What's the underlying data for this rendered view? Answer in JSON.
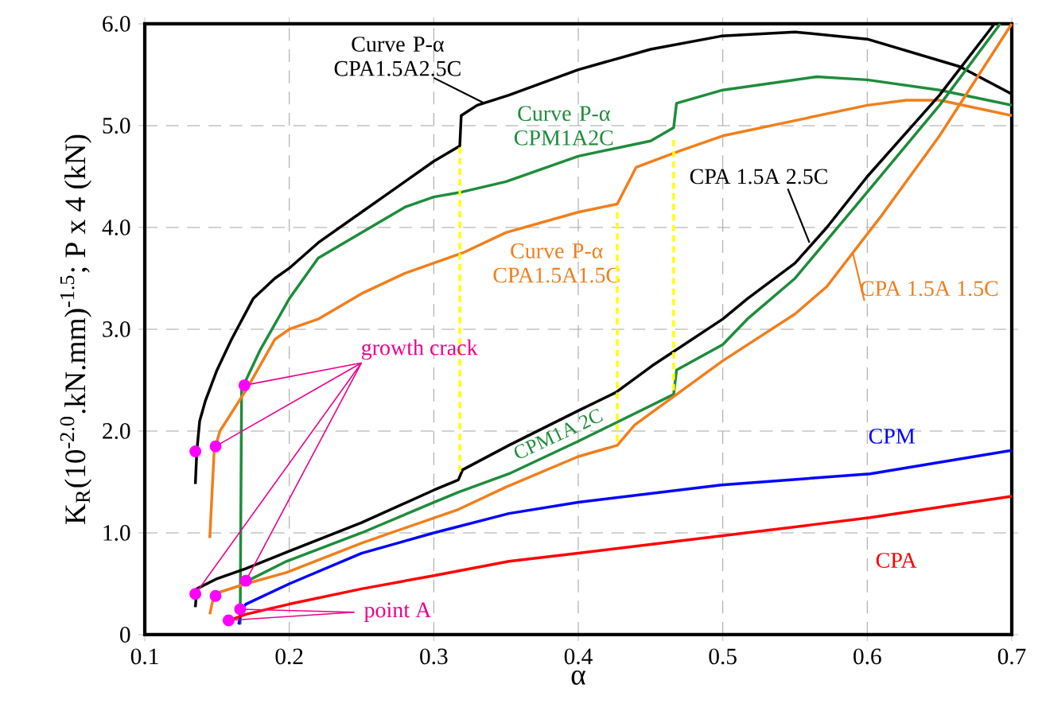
{
  "chart_data": {
    "type": "line",
    "xlabel": "α",
    "ylabel": "K$_{R}$(10$^{-2.0}$.kN.mm)$^{-1.5}$; P x 4 (kN)",
    "xlim": [
      0.1,
      0.7
    ],
    "ylim": [
      0,
      6
    ],
    "xticks": [
      0.1,
      0.2,
      0.3,
      0.4,
      0.5,
      0.6,
      0.7
    ],
    "yticks": [
      0,
      {
        "value": 1,
        "label": "1.0"
      },
      {
        "value": 2,
        "label": "2.0"
      },
      {
        "value": 3,
        "label": "3.0"
      },
      {
        "value": 4,
        "label": "4.0"
      },
      {
        "value": 5,
        "label": "5.0"
      },
      {
        "value": 6,
        "label": "6.0"
      }
    ],
    "grid": true,
    "annotations": [
      {
        "text": "growth crack",
        "x": 0.169,
        "y": 2.45
      },
      {
        "text": "point A",
        "x": 0.166,
        "y": 0.25
      }
    ],
    "series": [
      {
        "name": "Curve P-α CPA1.5A2.5C",
        "color": "#000000",
        "x": [
          0.135,
          0.136,
          0.138,
          0.142,
          0.15,
          0.16,
          0.175,
          0.19,
          0.2,
          0.22,
          0.25,
          0.28,
          0.3,
          0.318,
          0.319,
          0.33,
          0.352,
          0.4,
          0.45,
          0.499,
          0.55,
          0.6,
          0.664,
          0.7
        ],
        "values": [
          1.48,
          1.8,
          2.1,
          2.3,
          2.6,
          2.9,
          3.3,
          3.5,
          3.6,
          3.85,
          4.15,
          4.45,
          4.65,
          4.8,
          5.1,
          5.2,
          5.3,
          5.55,
          5.75,
          5.88,
          5.92,
          5.85,
          5.58,
          5.31
        ]
      },
      {
        "name": "Curve P-α CPM1A2C",
        "color": "#1e8c3c",
        "x": [
          0.166,
          0.167,
          0.17,
          0.18,
          0.2,
          0.22,
          0.25,
          0.28,
          0.3,
          0.32,
          0.35,
          0.4,
          0.45,
          0.466,
          0.468,
          0.5,
          0.565,
          0.6,
          0.65,
          0.7
        ],
        "values": [
          0.1,
          2.4,
          2.5,
          2.8,
          3.3,
          3.7,
          3.95,
          4.2,
          4.3,
          4.35,
          4.45,
          4.7,
          4.85,
          4.98,
          5.22,
          5.35,
          5.48,
          5.45,
          5.35,
          5.2
        ]
      },
      {
        "name": "Curve P-α CPA1.5A1.5C",
        "color": "#f07f1c",
        "x": [
          0.145,
          0.148,
          0.152,
          0.17,
          0.19,
          0.2,
          0.22,
          0.25,
          0.28,
          0.3,
          0.32,
          0.35,
          0.4,
          0.427,
          0.44,
          0.47,
          0.5,
          0.55,
          0.6,
          0.627,
          0.65,
          0.7
        ],
        "values": [
          0.95,
          1.8,
          2.0,
          2.4,
          2.9,
          3.0,
          3.1,
          3.35,
          3.55,
          3.65,
          3.75,
          3.95,
          4.15,
          4.23,
          4.59,
          4.75,
          4.9,
          5.05,
          5.2,
          5.25,
          5.25,
          5.1
        ]
      },
      {
        "name": "CPA 1.5A 2.5C",
        "color": "#000000",
        "x": [
          0.135,
          0.136,
          0.15,
          0.17,
          0.198,
          0.25,
          0.3,
          0.317,
          0.32,
          0.352,
          0.4,
          0.426,
          0.451,
          0.5,
          0.517,
          0.55,
          0.572,
          0.6,
          0.65,
          0.688
        ],
        "values": [
          0.27,
          0.45,
          0.55,
          0.65,
          0.81,
          1.1,
          1.42,
          1.52,
          1.62,
          1.86,
          2.2,
          2.38,
          2.64,
          3.1,
          3.3,
          3.65,
          4.0,
          4.5,
          5.3,
          6.0
        ]
      },
      {
        "name": "CPM1A 2C",
        "color": "#1e8c3c",
        "x": [
          0.17,
          0.198,
          0.25,
          0.3,
          0.317,
          0.352,
          0.4,
          0.466,
          0.468,
          0.5,
          0.517,
          0.55,
          0.609,
          0.65,
          0.692
        ],
        "values": [
          0.52,
          0.72,
          1.0,
          1.3,
          1.4,
          1.58,
          1.9,
          2.36,
          2.6,
          2.85,
          3.1,
          3.5,
          4.5,
          5.2,
          6.0
        ]
      },
      {
        "name": "CPA 1.5A 1.5C",
        "color": "#f07f1c",
        "x": [
          0.145,
          0.148,
          0.17,
          0.198,
          0.25,
          0.317,
          0.35,
          0.4,
          0.427,
          0.439,
          0.5,
          0.55,
          0.572,
          0.609,
          0.65,
          0.7
        ],
        "values": [
          0.2,
          0.4,
          0.5,
          0.61,
          0.9,
          1.23,
          1.45,
          1.75,
          1.86,
          2.06,
          2.69,
          3.15,
          3.42,
          4.1,
          4.9,
          6.0
        ]
      },
      {
        "name": "CPM",
        "color": "#0000ff",
        "x": [
          0.165,
          0.167,
          0.17,
          0.2,
          0.25,
          0.3,
          0.352,
          0.4,
          0.499,
          0.602,
          0.7
        ],
        "values": [
          0.1,
          0.25,
          0.3,
          0.5,
          0.8,
          1.0,
          1.19,
          1.3,
          1.47,
          1.58,
          1.81
        ]
      },
      {
        "name": "CPA",
        "color": "#ff0000",
        "x": [
          0.16,
          0.17,
          0.2,
          0.25,
          0.3,
          0.352,
          0.4,
          0.499,
          0.602,
          0.7
        ],
        "values": [
          0.15,
          0.2,
          0.3,
          0.45,
          0.58,
          0.72,
          0.8,
          0.97,
          1.15,
          1.36
        ]
      },
      {
        "type": "line",
        "color": "#ffff00",
        "line_style": "dashed",
        "x": [
          0.318,
          0.318
        ],
        "values": [
          1.6,
          4.8
        ]
      },
      {
        "type": "line",
        "color": "#ffff00",
        "line_style": "dashed",
        "x": [
          0.427,
          0.427
        ],
        "values": [
          1.9,
          4.2
        ]
      },
      {
        "type": "line",
        "color": "#ffff00",
        "line_style": "dashed",
        "x": [
          0.466,
          0.466
        ],
        "values": [
          2.4,
          4.9
        ]
      },
      {
        "type": "scatter",
        "color": "#ff00ff",
        "marker": "circle",
        "x": [
          0.135,
          0.149,
          0.169,
          0.135,
          0.149,
          0.17,
          0.158,
          0.166
        ],
        "values": [
          1.8,
          1.85,
          2.45,
          0.4,
          0.38,
          0.53,
          0.14,
          0.25
        ]
      }
    ]
  }
}
